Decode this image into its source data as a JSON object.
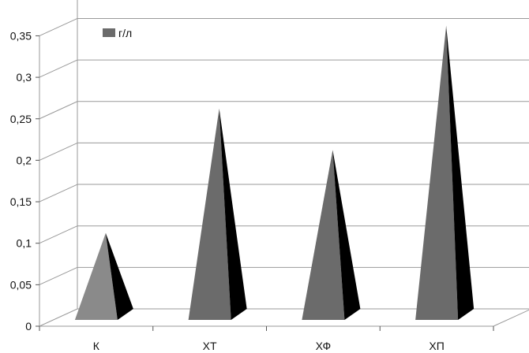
{
  "chart_data": {
    "type": "bar",
    "style": "3d-cone",
    "categories": [
      "К",
      "ХТ",
      "ХФ",
      "ХП"
    ],
    "series": [
      {
        "name": "г/л",
        "values": [
          0.1,
          0.25,
          0.2,
          0.35
        ]
      }
    ],
    "ylim": [
      0,
      0.35
    ],
    "yticks": [
      "0",
      "0,05",
      "0,1",
      "0,15",
      "0,2",
      "0,25",
      "0,3",
      "0,35"
    ],
    "grid": true,
    "legend": "top-left",
    "colors": {
      "front": "#6b6b6b",
      "front_light": "#8a8a8a",
      "side": "#000000",
      "grid": "#9a9a9a"
    }
  }
}
